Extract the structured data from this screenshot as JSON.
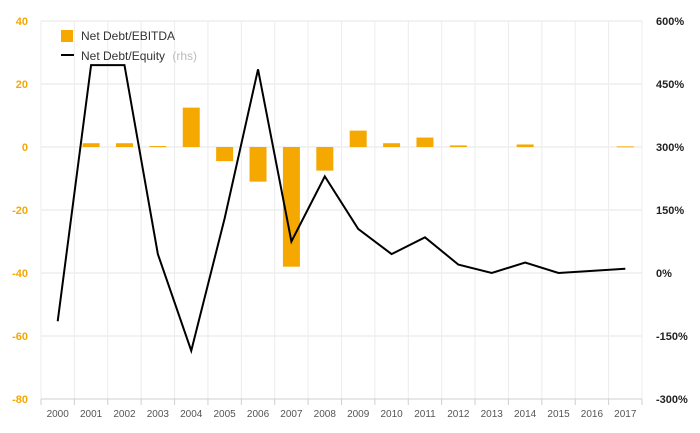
{
  "chart_data": {
    "type": "bar",
    "categories": [
      "2000",
      "2001",
      "2002",
      "2003",
      "2004",
      "2005",
      "2006",
      "2007",
      "2008",
      "2009",
      "2010",
      "2011",
      "2012",
      "2013",
      "2014",
      "2015",
      "2016",
      "2017"
    ],
    "series": [
      {
        "name": "Net Debt/EBITDA",
        "type": "bar",
        "axis": "left",
        "color": "#f5a800",
        "values": [
          0,
          1.2,
          1.2,
          0.3,
          12.5,
          -4.5,
          -11.0,
          -38.0,
          -7.5,
          5.2,
          1.2,
          3.0,
          0.5,
          0,
          0.8,
          0,
          0,
          0.2
        ]
      },
      {
        "name": "Net Debt/Equity",
        "name_note": "(rhs)",
        "type": "line",
        "axis": "right",
        "color": "#000000",
        "values": [
          -115,
          495,
          495,
          45,
          -185,
          130,
          485,
          75,
          230,
          105,
          45,
          85,
          20,
          0,
          25,
          0,
          5,
          10
        ]
      }
    ],
    "y_left": {
      "range": [
        -80,
        40
      ],
      "ticks": [
        "40",
        "20",
        "0",
        "-20",
        "-40",
        "-60",
        "-80"
      ],
      "tick_values": [
        40,
        20,
        0,
        -20,
        -40,
        -60,
        -80
      ]
    },
    "y_right": {
      "range": [
        -300,
        600
      ],
      "ticks": [
        "600%",
        "450%",
        "300%",
        "150%",
        "0%",
        "-150%",
        "-300%"
      ],
      "tick_values": [
        600,
        450,
        300,
        150,
        0,
        -150,
        -300
      ]
    },
    "grid": true,
    "legend_position": "top-left"
  }
}
